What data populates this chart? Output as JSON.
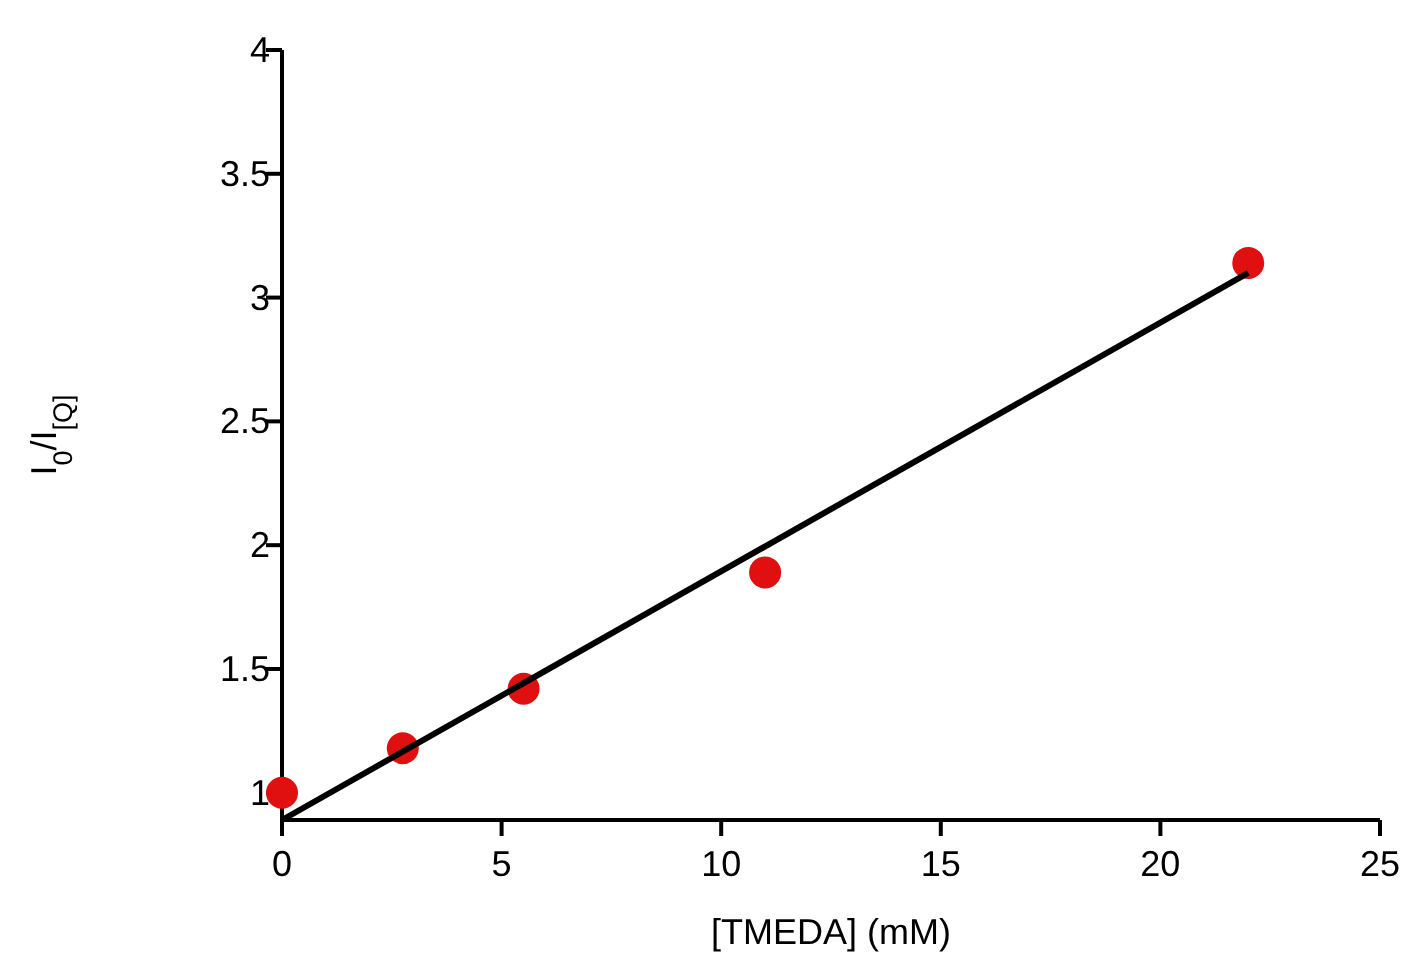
{
  "chart_data": {
    "type": "scatter",
    "xlabel": "[TMEDA] (mM)",
    "ylabel": "I$_{0}$/I$_{[Q]}$",
    "xlim": [
      0,
      25
    ],
    "ylim": [
      0.89,
      4
    ],
    "xticks": [
      0,
      5,
      10,
      15,
      20,
      25
    ],
    "yticks": [
      1,
      1.5,
      2,
      2.5,
      3,
      3.5,
      4
    ],
    "grid": false,
    "series": [
      {
        "color": "#e01010",
        "marker": "circle",
        "x": [
          0,
          2.75,
          5.5,
          11,
          22
        ],
        "values": [
          1.0,
          1.18,
          1.42,
          1.89,
          3.14
        ]
      },
      {
        "type": "line",
        "color": "#000000",
        "line_style": "solid",
        "x": [
          0,
          22
        ],
        "values": [
          0.89,
          3.1
        ]
      }
    ]
  }
}
